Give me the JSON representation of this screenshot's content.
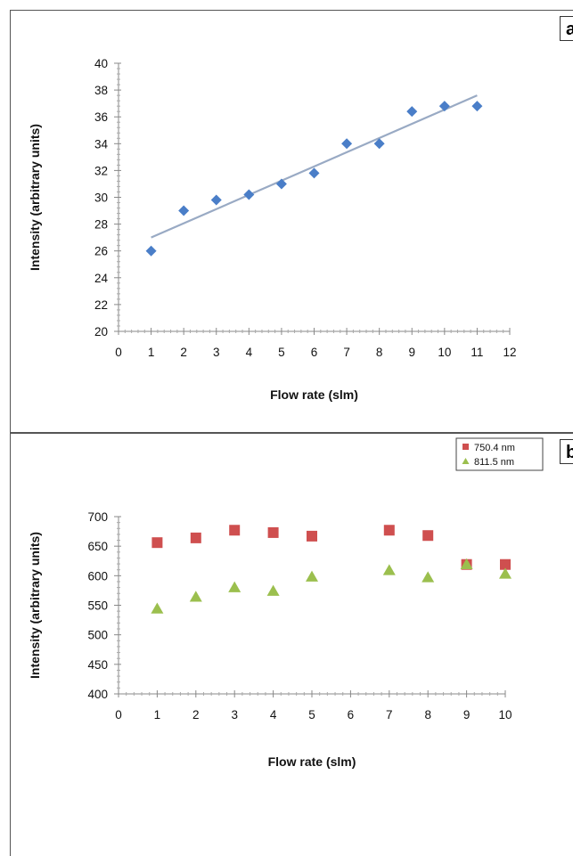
{
  "chart_data": [
    {
      "panel": "a",
      "type": "scatter",
      "xlabel": "Flow rate (slm)",
      "ylabel": "Intensity (arbitrary units)",
      "xlim": [
        0,
        12
      ],
      "ylim": [
        20,
        40
      ],
      "xticks": [
        0,
        1,
        2,
        3,
        4,
        5,
        6,
        7,
        8,
        9,
        10,
        11,
        12
      ],
      "yticks": [
        20,
        22,
        24,
        26,
        28,
        30,
        32,
        34,
        36,
        38,
        40
      ],
      "series": [
        {
          "marker": "diamond",
          "color": "#4a7ec8",
          "x": [
            1,
            2,
            3,
            4,
            5,
            6,
            7,
            8,
            9,
            10,
            11
          ],
          "y": [
            26,
            29,
            29.8,
            30.2,
            31,
            31.8,
            34,
            34,
            36.4,
            36.8,
            36.8
          ]
        }
      ],
      "trendline": {
        "type": "linear",
        "x": [
          1,
          11
        ],
        "y": [
          27.0,
          37.6
        ],
        "color": "#99aac4"
      },
      "grid": false
    },
    {
      "panel": "b",
      "type": "scatter",
      "xlabel": "Flow rate (slm)",
      "ylabel": "Intensity (arbitrary units)",
      "xlim": [
        0,
        10
      ],
      "ylim": [
        400,
        700
      ],
      "xticks": [
        0,
        1,
        2,
        3,
        4,
        5,
        6,
        7,
        8,
        9,
        10
      ],
      "yticks": [
        400,
        450,
        500,
        550,
        600,
        650,
        700
      ],
      "legend_position": "top-right",
      "series": [
        {
          "name": "750.4 nm",
          "marker": "square",
          "color": "#cf4f4f",
          "x": [
            1,
            2,
            3,
            4,
            5,
            7,
            8,
            9,
            10
          ],
          "y": [
            656,
            664,
            677,
            673,
            667,
            677,
            668,
            619,
            619
          ]
        },
        {
          "name": "811.5 nm",
          "marker": "triangle",
          "color": "#9bbf4e",
          "x": [
            1,
            2,
            3,
            4,
            5,
            7,
            8,
            9,
            10
          ],
          "y": [
            544,
            564,
            580,
            574,
            598,
            609,
            597,
            619,
            603
          ]
        }
      ],
      "grid": false
    }
  ],
  "panels": {
    "a_label": "a",
    "b_label": "b"
  }
}
